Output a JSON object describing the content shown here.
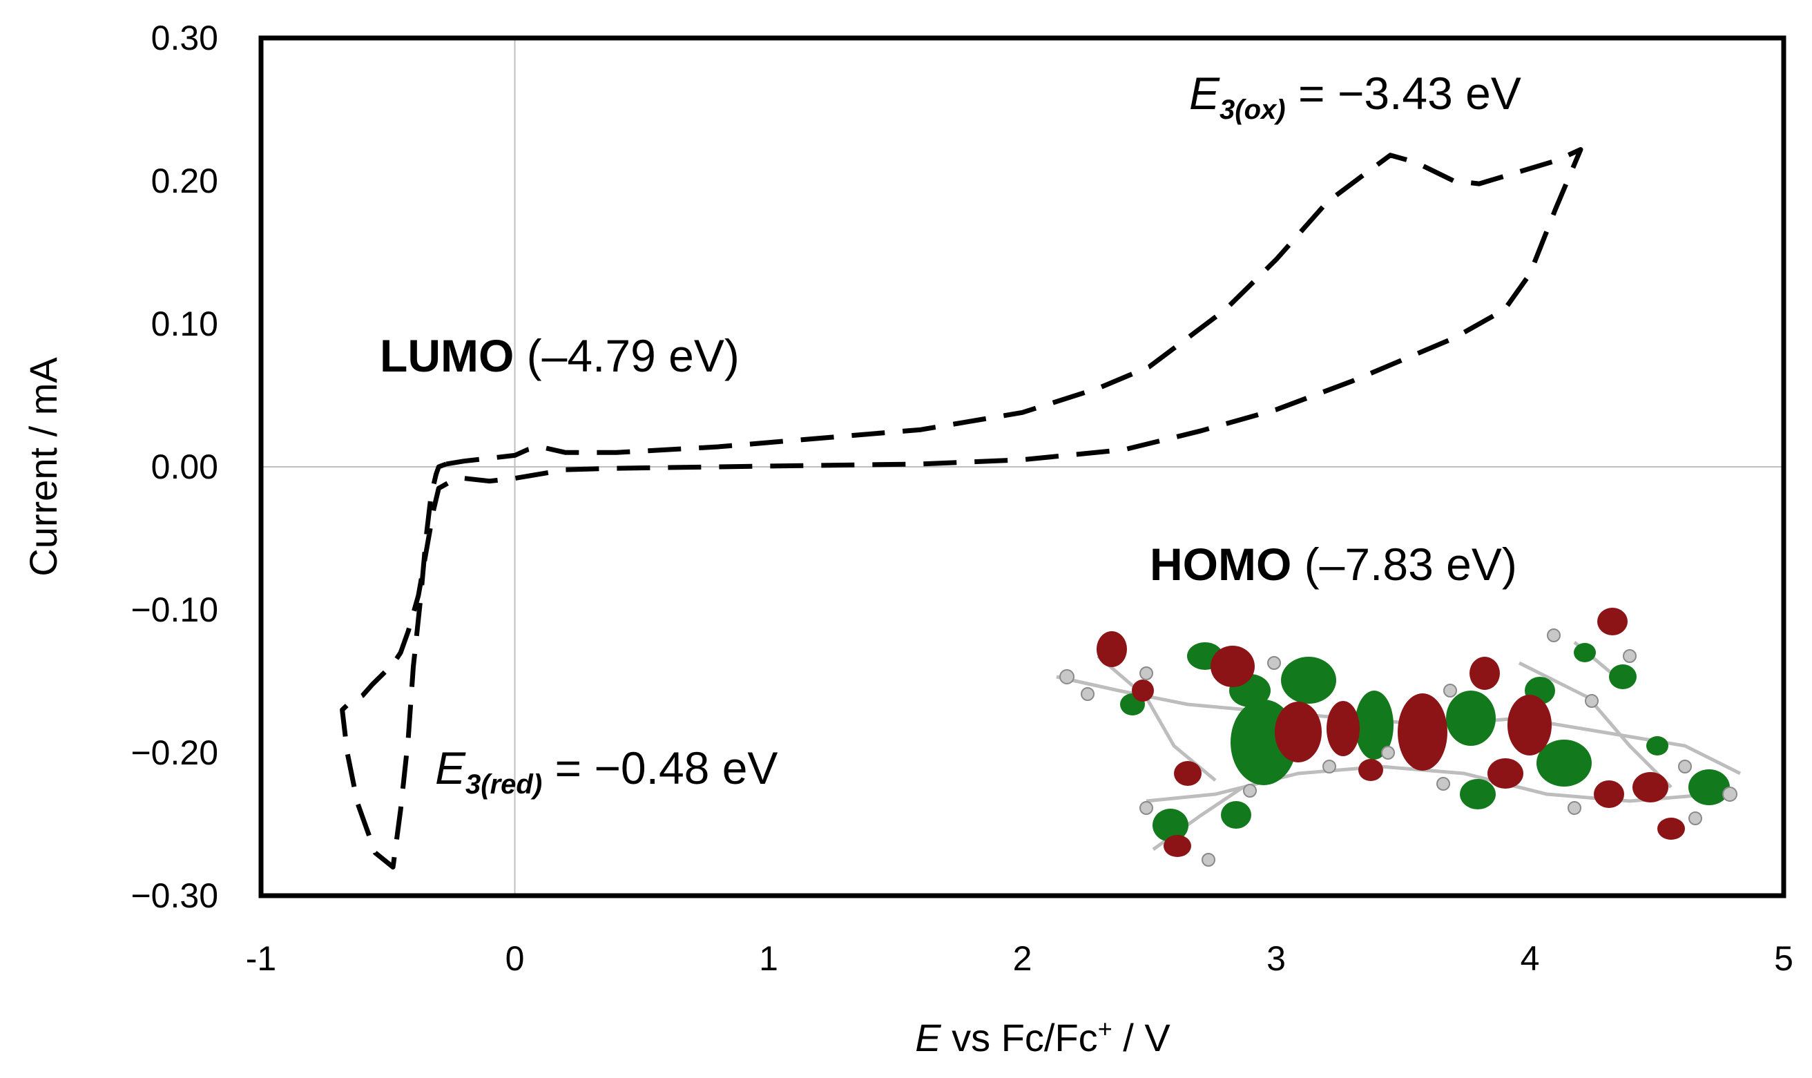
{
  "chart_data": {
    "type": "line",
    "title": "",
    "xlabel_italic": "E",
    "xlabel_rest": " vs Fc/Fc",
    "xlabel_sup": "+",
    "xlabel_tail": " / V",
    "ylabel": "Current / mA",
    "xlim": [
      -1,
      5
    ],
    "ylim": [
      -0.3,
      0.3
    ],
    "x_ticks": [
      -1,
      0,
      1,
      2,
      3,
      4,
      5
    ],
    "x_tick_labels": [
      "-1",
      "0",
      "1",
      "2",
      "3",
      "4",
      "5"
    ],
    "y_ticks": [
      0.3,
      0.2,
      0.1,
      0.0,
      -0.1,
      -0.2,
      -0.3
    ],
    "y_tick_labels": [
      "0.30",
      "0.20",
      "0.10",
      "0.00",
      "−0.10",
      "−0.20",
      "−0.30"
    ],
    "gridlines": [
      "x=0",
      "y=0"
    ],
    "series": [
      {
        "name": "cyclic voltammogram",
        "style": "dashed",
        "color": "#000000",
        "x": [
          -0.27,
          -0.2,
          0.0,
          0.05,
          0.1,
          0.2,
          0.4,
          0.8,
          1.2,
          1.6,
          2.0,
          2.3,
          2.5,
          2.8,
          3.0,
          3.2,
          3.35,
          3.45,
          3.55,
          3.7,
          3.8,
          3.95,
          4.1,
          4.2,
          4.1,
          4.0,
          3.9,
          3.7,
          3.5,
          3.3,
          3.0,
          2.7,
          2.4,
          2.0,
          1.6,
          1.2,
          0.8,
          0.4,
          0.2,
          0.0,
          -0.1,
          -0.2,
          -0.25,
          -0.3,
          -0.32,
          -0.35,
          -0.38,
          -0.42,
          -0.45,
          -0.48,
          -0.52,
          -0.56,
          -0.6,
          -0.65,
          -0.68,
          -0.66,
          -0.62,
          -0.55,
          -0.48,
          -0.45,
          -0.42,
          -0.4,
          -0.37,
          -0.35,
          -0.33,
          -0.31,
          -0.3,
          -0.27
        ],
        "y": [
          0.002,
          0.004,
          0.008,
          0.012,
          0.014,
          0.01,
          0.01,
          0.014,
          0.02,
          0.026,
          0.038,
          0.055,
          0.07,
          0.11,
          0.145,
          0.185,
          0.205,
          0.218,
          0.213,
          0.2,
          0.198,
          0.206,
          0.214,
          0.222,
          0.18,
          0.135,
          0.11,
          0.09,
          0.075,
          0.06,
          0.04,
          0.025,
          0.012,
          0.005,
          0.002,
          0.001,
          0.0,
          -0.001,
          -0.002,
          -0.008,
          -0.01,
          -0.008,
          -0.01,
          -0.015,
          -0.03,
          -0.06,
          -0.09,
          -0.115,
          -0.13,
          -0.138,
          -0.145,
          -0.152,
          -0.16,
          -0.165,
          -0.17,
          -0.2,
          -0.235,
          -0.27,
          -0.28,
          -0.24,
          -0.19,
          -0.14,
          -0.09,
          -0.05,
          -0.02,
          -0.005,
          0.0,
          0.002
        ]
      }
    ],
    "annotations": [
      {
        "id": "ox",
        "prefix": "E",
        "sub": "3(ox)",
        "text": " = −3.43 eV"
      },
      {
        "id": "lumo",
        "bold": "LUMO",
        "text": " (–4.79 eV)"
      },
      {
        "id": "homo",
        "bold": "HOMO",
        "text": " (–7.83 eV)"
      },
      {
        "id": "red",
        "prefix": "E",
        "sub": "3(red)",
        "text": " = −0.48 eV"
      }
    ],
    "inset_image": "HOMO molecular orbital rendering with red and green lobes"
  },
  "colors": {
    "plot_border": "#000000",
    "gridline": "#bfbfbf",
    "lobe_red": "#8c1416",
    "lobe_green": "#127a1c",
    "atom_gray": "#c8c8c8"
  }
}
